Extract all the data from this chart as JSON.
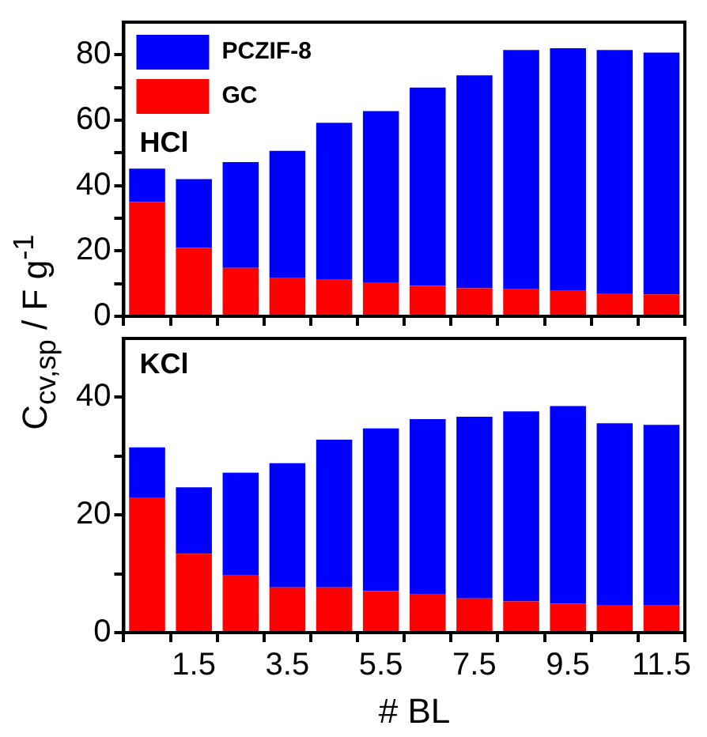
{
  "chart_data": [
    {
      "type": "bar",
      "stacked": true,
      "ylabel": "C$_{cv,sp}$ / F g$^{-1}$",
      "annotations": [
        "HCl"
      ],
      "categories": [
        null,
        "1.5",
        null,
        "3.5",
        null,
        "5.5",
        null,
        "7.5",
        null,
        "9.5",
        null,
        "11.5"
      ],
      "series": [
        {
          "name": "GC",
          "color": "#ff0000",
          "values": [
            35,
            21,
            14.8,
            11.7,
            11.2,
            10.4,
            9.3,
            8.6,
            8.3,
            7.8,
            7,
            6.7
          ]
        },
        {
          "name": "PCZIF-8",
          "color": "#0000ff",
          "values": [
            10.2,
            21,
            32.4,
            38.9,
            48,
            52.4,
            60.7,
            65.1,
            73.2,
            74.2,
            74.5,
            74
          ]
        }
      ],
      "ylim": [
        0,
        90
      ],
      "yticks": [
        0,
        {
          "value": 10,
          "label": null
        },
        20,
        {
          "value": 30,
          "label": null
        },
        40,
        {
          "value": 50,
          "label": null
        },
        60,
        {
          "value": 70,
          "label": null
        },
        80
      ],
      "legend": "top left",
      "grid": false,
      "tick_labels": "y"
    },
    {
      "type": "bar",
      "stacked": true,
      "xlabel": "# BL",
      "annotations": [
        "KCl"
      ],
      "categories": [
        null,
        "1.5",
        null,
        "3.5",
        null,
        "5.5",
        null,
        "7.5",
        null,
        "9.5",
        null,
        "11.5"
      ],
      "series": [
        {
          "color": "#ff0000",
          "values": [
            23,
            13.4,
            9.7,
            7.7,
            7.7,
            7.1,
            6.5,
            5.8,
            5.3,
            4.9,
            4.7,
            4.6
          ]
        },
        {
          "color": "#0000ff",
          "values": [
            8.5,
            11.3,
            17.5,
            21.1,
            25.1,
            27.6,
            29.8,
            30.9,
            32.3,
            33.6,
            30.9,
            30.7
          ]
        }
      ],
      "ylim": [
        0,
        50
      ],
      "yticks": [
        0,
        {
          "value": 10,
          "label": null
        },
        20,
        {
          "value": 30,
          "label": null
        },
        40
      ],
      "legend": false,
      "grid": false
    }
  ]
}
